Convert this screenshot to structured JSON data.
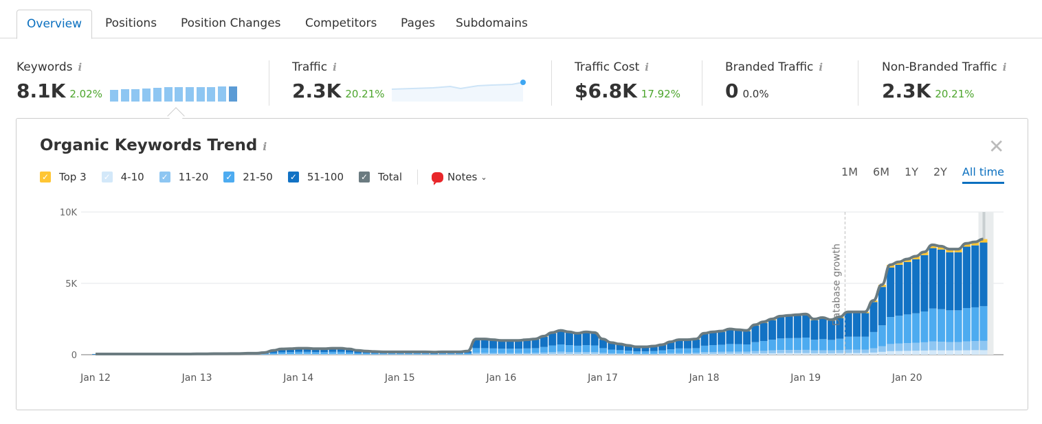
{
  "tabs": [
    {
      "label": "Overview",
      "active": true
    },
    {
      "label": "Positions"
    },
    {
      "label": "Position Changes"
    },
    {
      "label": "Competitors"
    },
    {
      "label": "Pages"
    },
    {
      "label": "Subdomains"
    }
  ],
  "metrics": [
    {
      "label": "Keywords",
      "value": "8.1K",
      "delta": "2.02%",
      "mini_bars": [
        0.78,
        0.82,
        0.82,
        0.86,
        0.9,
        0.95,
        0.95,
        0.95,
        0.95,
        0.95,
        0.98,
        1.0
      ]
    },
    {
      "label": "Traffic",
      "value": "2.3K",
      "delta": "20.21%"
    },
    {
      "label": "Traffic Cost",
      "value": "$6.8K",
      "delta": "17.92%"
    },
    {
      "label": "Branded Traffic",
      "value": "0",
      "delta": "0.0%"
    },
    {
      "label": "Non-Branded Traffic",
      "value": "2.3K",
      "delta": "20.21%"
    }
  ],
  "panel": {
    "title": "Organic Keywords Trend",
    "close_icon": "close-icon",
    "notes_label": "Notes",
    "periods": [
      {
        "label": "1M"
      },
      {
        "label": "6M"
      },
      {
        "label": "1Y"
      },
      {
        "label": "2Y"
      },
      {
        "label": "All time",
        "active": true
      }
    ]
  },
  "colors": {
    "accent": "#0a6fbf",
    "positive": "#4ca52c",
    "top3": "#ffc634",
    "r4_10": "#d3e8f9",
    "r11_20": "#8ec6f2",
    "r21_50": "#4dabf0",
    "r51_100": "#1272c4",
    "total": "#6b7b80"
  },
  "chart_data": {
    "type": "bar",
    "stacked": true,
    "legend": [
      "Top 3",
      "4-10",
      "11-20",
      "21-50",
      "51-100",
      "Total"
    ],
    "x_start": "2012-01",
    "x_interval": "month",
    "x_tick_labels": [
      "Jan 12",
      "Jan 13",
      "Jan 14",
      "Jan 15",
      "Jan 16",
      "Jan 17",
      "Jan 18",
      "Jan 19",
      "Jan 20"
    ],
    "y_tick_labels": [
      "0",
      "5K",
      "10K"
    ],
    "ylim": [
      0,
      10000
    ],
    "grid": true,
    "annotation": "Database growth",
    "annotation_date": "2019-05",
    "series": [
      {
        "name": "Top 3",
        "values": [
          0,
          0,
          0,
          0,
          0,
          0,
          0,
          0,
          0,
          0,
          0,
          0,
          0,
          0,
          0,
          0,
          0,
          0,
          0,
          0,
          0,
          0.01,
          0.01,
          0.01,
          0.01,
          0.01,
          0.01,
          0.01,
          0.01,
          0.01,
          0.01,
          0.01,
          0.01,
          0.01,
          0.01,
          0.01,
          0.01,
          0.01,
          0.01,
          0.01,
          0.01,
          0.01,
          0.01,
          0.01,
          0.01,
          0.03,
          0.03,
          0.03,
          0.03,
          0.03,
          0.03,
          0.03,
          0.03,
          0.04,
          0.05,
          0.05,
          0.05,
          0.05,
          0.05,
          0.05,
          0.03,
          0.03,
          0.02,
          0.02,
          0.02,
          0.02,
          0.02,
          0.02,
          0.03,
          0.03,
          0.03,
          0.03,
          0.05,
          0.05,
          0.05,
          0.05,
          0.05,
          0.05,
          0.06,
          0.07,
          0.08,
          0.08,
          0.08,
          0.08,
          0.09,
          0.08,
          0.08,
          0.07,
          0.08,
          0.09,
          0.09,
          0.09,
          0.11,
          0.15,
          0.19,
          0.2,
          0.2,
          0.21,
          0.22,
          0.23,
          0.23,
          0.22,
          0.22,
          0.23,
          0.24,
          0.24
        ]
      },
      {
        "name": "4-10",
        "values": [
          0,
          0,
          0,
          0,
          0,
          0,
          0,
          0,
          0,
          0,
          0,
          0,
          0,
          0,
          0,
          0,
          0,
          0,
          0,
          0,
          0.01,
          0.01,
          0.02,
          0.02,
          0.02,
          0.02,
          0.02,
          0.02,
          0.02,
          0.02,
          0.02,
          0.01,
          0.01,
          0.01,
          0.01,
          0.01,
          0.01,
          0.01,
          0.01,
          0.01,
          0.01,
          0.01,
          0.01,
          0.01,
          0.01,
          0.04,
          0.04,
          0.04,
          0.04,
          0.04,
          0.04,
          0.04,
          0.04,
          0.05,
          0.06,
          0.07,
          0.06,
          0.06,
          0.06,
          0.06,
          0.04,
          0.03,
          0.03,
          0.03,
          0.02,
          0.02,
          0.02,
          0.03,
          0.04,
          0.04,
          0.04,
          0.04,
          0.06,
          0.06,
          0.07,
          0.07,
          0.07,
          0.07,
          0.08,
          0.09,
          0.1,
          0.11,
          0.11,
          0.11,
          0.11,
          0.1,
          0.1,
          0.1,
          0.11,
          0.12,
          0.12,
          0.12,
          0.15,
          0.2,
          0.25,
          0.26,
          0.27,
          0.28,
          0.29,
          0.31,
          0.3,
          0.3,
          0.3,
          0.31,
          0.32,
          0.32
        ]
      },
      {
        "name": "11-20",
        "values": [
          0,
          0,
          0,
          0,
          0,
          0,
          0,
          0,
          0,
          0,
          0,
          0,
          0,
          0,
          0.01,
          0.01,
          0.01,
          0.01,
          0.01,
          0.01,
          0.01,
          0.02,
          0.03,
          0.03,
          0.04,
          0.04,
          0.03,
          0.03,
          0.04,
          0.04,
          0.03,
          0.02,
          0.02,
          0.02,
          0.02,
          0.02,
          0.02,
          0.02,
          0.02,
          0.02,
          0.01,
          0.02,
          0.02,
          0.02,
          0.02,
          0.09,
          0.09,
          0.08,
          0.08,
          0.08,
          0.08,
          0.08,
          0.09,
          0.1,
          0.12,
          0.14,
          0.13,
          0.12,
          0.13,
          0.12,
          0.09,
          0.07,
          0.06,
          0.05,
          0.04,
          0.04,
          0.05,
          0.06,
          0.07,
          0.08,
          0.08,
          0.09,
          0.12,
          0.13,
          0.13,
          0.14,
          0.14,
          0.14,
          0.17,
          0.18,
          0.2,
          0.22,
          0.22,
          0.22,
          0.23,
          0.2,
          0.21,
          0.2,
          0.21,
          0.24,
          0.24,
          0.24,
          0.3,
          0.39,
          0.5,
          0.52,
          0.54,
          0.55,
          0.58,
          0.62,
          0.61,
          0.59,
          0.59,
          0.62,
          0.63,
          0.65
        ]
      },
      {
        "name": "21-50",
        "values": [
          0.02,
          0.02,
          0.02,
          0.02,
          0.02,
          0.02,
          0.02,
          0.02,
          0.02,
          0.02,
          0.02,
          0.02,
          0.02,
          0.02,
          0.02,
          0.02,
          0.02,
          0.02,
          0.03,
          0.03,
          0.05,
          0.09,
          0.12,
          0.13,
          0.14,
          0.14,
          0.13,
          0.13,
          0.14,
          0.14,
          0.12,
          0.09,
          0.08,
          0.07,
          0.06,
          0.06,
          0.06,
          0.06,
          0.06,
          0.06,
          0.05,
          0.06,
          0.06,
          0.06,
          0.08,
          0.33,
          0.33,
          0.32,
          0.3,
          0.3,
          0.3,
          0.32,
          0.33,
          0.39,
          0.47,
          0.51,
          0.48,
          0.45,
          0.48,
          0.47,
          0.33,
          0.26,
          0.23,
          0.2,
          0.17,
          0.17,
          0.18,
          0.21,
          0.27,
          0.32,
          0.32,
          0.33,
          0.45,
          0.48,
          0.5,
          0.54,
          0.53,
          0.51,
          0.63,
          0.69,
          0.75,
          0.81,
          0.83,
          0.84,
          0.86,
          0.75,
          0.78,
          0.74,
          0.8,
          0.9,
          0.9,
          0.9,
          1.14,
          1.47,
          1.89,
          1.95,
          2.01,
          2.07,
          2.16,
          2.31,
          2.28,
          2.22,
          2.22,
          2.34,
          2.37,
          2.43
        ]
      },
      {
        "name": "51-100",
        "values": [
          0.03,
          0.03,
          0.03,
          0.03,
          0.03,
          0.03,
          0.03,
          0.03,
          0.03,
          0.03,
          0.03,
          0.03,
          0.04,
          0.04,
          0.04,
          0.04,
          0.05,
          0.05,
          0.06,
          0.06,
          0.08,
          0.17,
          0.22,
          0.23,
          0.24,
          0.24,
          0.23,
          0.23,
          0.24,
          0.24,
          0.22,
          0.17,
          0.13,
          0.11,
          0.1,
          0.1,
          0.1,
          0.1,
          0.1,
          0.1,
          0.1,
          0.1,
          0.1,
          0.1,
          0.13,
          0.61,
          0.61,
          0.58,
          0.55,
          0.55,
          0.55,
          0.58,
          0.61,
          0.72,
          0.85,
          0.93,
          0.88,
          0.82,
          0.88,
          0.85,
          0.61,
          0.46,
          0.41,
          0.35,
          0.3,
          0.3,
          0.33,
          0.38,
          0.49,
          0.58,
          0.58,
          0.61,
          0.82,
          0.88,
          0.9,
          1.0,
          0.96,
          0.93,
          1.16,
          1.27,
          1.37,
          1.48,
          1.51,
          1.55,
          1.56,
          1.37,
          1.43,
          1.34,
          1.45,
          1.65,
          1.65,
          1.65,
          2.1,
          2.69,
          3.47,
          3.57,
          3.68,
          3.79,
          3.95,
          4.23,
          4.18,
          4.07,
          4.07,
          4.3,
          4.34,
          4.46
        ]
      },
      {
        "name": "Total",
        "values": [
          0.05,
          0.05,
          0.05,
          0.05,
          0.05,
          0.05,
          0.05,
          0.05,
          0.05,
          0.05,
          0.05,
          0.05,
          0.06,
          0.06,
          0.07,
          0.07,
          0.08,
          0.08,
          0.1,
          0.1,
          0.15,
          0.3,
          0.4,
          0.42,
          0.45,
          0.45,
          0.42,
          0.42,
          0.45,
          0.45,
          0.4,
          0.3,
          0.25,
          0.22,
          0.2,
          0.2,
          0.2,
          0.2,
          0.2,
          0.2,
          0.18,
          0.2,
          0.2,
          0.2,
          0.25,
          1.1,
          1.1,
          1.05,
          1.0,
          1.0,
          1.0,
          1.05,
          1.1,
          1.3,
          1.55,
          1.7,
          1.6,
          1.5,
          1.6,
          1.55,
          1.1,
          0.85,
          0.75,
          0.65,
          0.55,
          0.55,
          0.6,
          0.7,
          0.9,
          1.05,
          1.05,
          1.1,
          1.5,
          1.6,
          1.65,
          1.8,
          1.75,
          1.7,
          2.1,
          2.3,
          2.5,
          2.7,
          2.75,
          2.8,
          2.85,
          2.5,
          2.6,
          2.45,
          2.65,
          3.0,
          3.0,
          3.0,
          3.8,
          4.9,
          6.3,
          6.5,
          6.7,
          6.9,
          7.2,
          7.7,
          7.6,
          7.4,
          7.4,
          7.8,
          7.9,
          8.1
        ]
      }
    ],
    "value_unit": "thousands of keywords"
  }
}
